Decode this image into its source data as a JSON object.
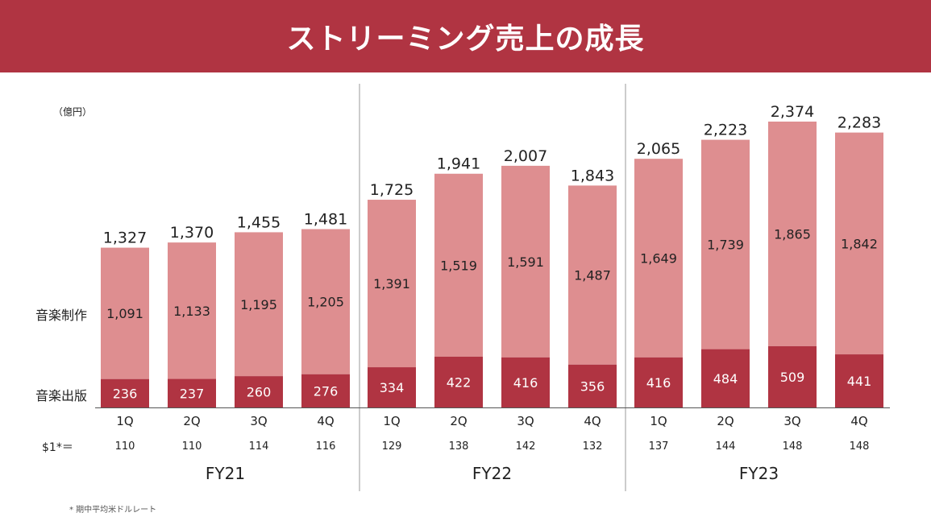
{
  "header": {
    "title": "ストリーミング売上の成長"
  },
  "unit_label": "（億円）",
  "row_labels": {
    "music_production": "音楽制作",
    "music_publishing": "音楽出版"
  },
  "rate_label": "$1*＝",
  "footnote": "* 期中平均米ドルレート",
  "colors": {
    "header": "#b03442",
    "top_segment": "#de8e90",
    "bottom_segment": "#b03442",
    "divider": "#9a9a9a"
  },
  "chart_data": {
    "type": "bar",
    "stacked": true,
    "categories": [
      "1Q",
      "2Q",
      "3Q",
      "4Q",
      "1Q",
      "2Q",
      "3Q",
      "4Q",
      "1Q",
      "2Q",
      "3Q",
      "4Q"
    ],
    "groups": [
      {
        "label": "FY21",
        "count": 4
      },
      {
        "label": "FY22",
        "count": 4
      },
      {
        "label": "FY23",
        "count": 4
      }
    ],
    "series": [
      {
        "name": "音楽出版",
        "values": [
          236,
          237,
          260,
          276,
          334,
          422,
          416,
          356,
          416,
          484,
          509,
          441
        ]
      },
      {
        "name": "音楽制作",
        "values": [
          1091,
          1133,
          1195,
          1205,
          1391,
          1519,
          1591,
          1487,
          1649,
          1739,
          1865,
          1842
        ]
      }
    ],
    "totals": [
      "1,327",
      "1,370",
      "1,455",
      "1,481",
      "1,725",
      "1,941",
      "2,007",
      "1,843",
      "2,065",
      "2,223",
      "2,374",
      "2,283"
    ],
    "segment_labels_top": [
      "1,091",
      "1,133",
      "1,195",
      "1,205",
      "1,391",
      "1,519",
      "1,591",
      "1,487",
      "1,649",
      "1,739",
      "1,865",
      "1,842"
    ],
    "segment_labels_bottom": [
      "236",
      "237",
      "260",
      "276",
      "334",
      "422",
      "416",
      "356",
      "416",
      "484",
      "509",
      "441"
    ],
    "exchange_rates": [
      "110",
      "110",
      "114",
      "116",
      "129",
      "138",
      "142",
      "132",
      "137",
      "144",
      "148",
      "148"
    ],
    "ylim": [
      0,
      2374
    ]
  }
}
